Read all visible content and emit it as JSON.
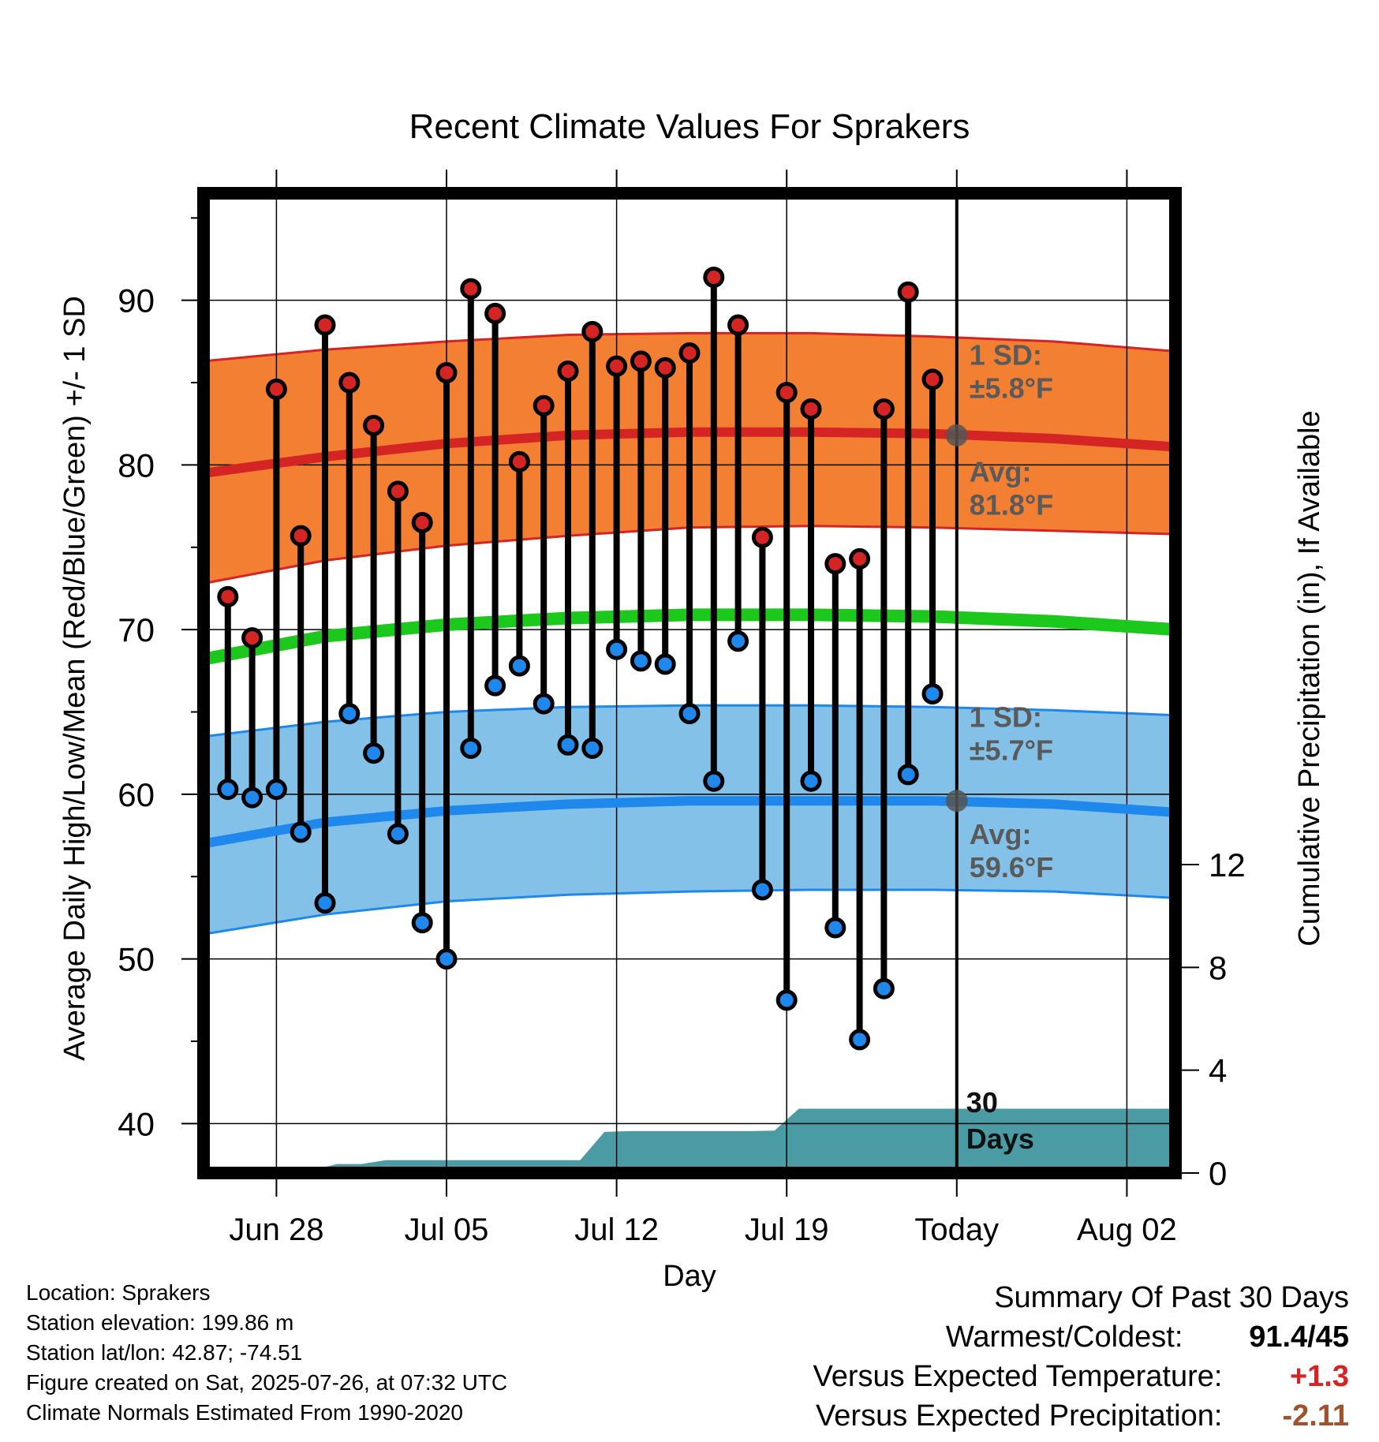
{
  "chart_data": {
    "type": "line",
    "title": "Recent Climate Values For Sprakers",
    "xlabel": "Day",
    "ylabel": "Average Daily High/Low/Mean (Red/Blue/Green) +/- 1 SD",
    "y2label": "Cumulative Precipitation (in), If Available",
    "ylim": [
      37,
      96.5
    ],
    "y2lim": [
      0,
      12
    ],
    "yticks": [
      40,
      50,
      60,
      70,
      80,
      90
    ],
    "y2ticks": [
      0,
      4,
      8,
      12
    ],
    "x_axis": {
      "start": "Jun 25",
      "end": "Aug 05",
      "ticks": [
        {
          "day": 3,
          "label": "Jun 28"
        },
        {
          "day": 10,
          "label": "Jul 05"
        },
        {
          "day": 17,
          "label": "Jul 12"
        },
        {
          "day": 24,
          "label": "Jul 19"
        },
        {
          "day": 31,
          "label": "Today"
        },
        {
          "day": 38,
          "label": "Aug 02"
        }
      ]
    },
    "today_day": 31,
    "days": [
      1,
      2,
      3,
      4,
      5,
      6,
      7,
      8,
      9,
      10,
      11,
      12,
      13,
      14,
      15,
      16,
      17,
      18,
      19,
      20,
      21,
      22,
      23,
      24,
      25,
      26,
      27,
      28,
      29,
      30
    ],
    "highs": [
      72.0,
      69.5,
      84.6,
      75.7,
      88.5,
      85.0,
      82.4,
      78.4,
      76.5,
      85.6,
      90.7,
      89.2,
      80.2,
      83.6,
      85.7,
      88.1,
      86.0,
      86.3,
      85.9,
      86.8,
      91.4,
      88.5,
      75.6,
      84.4,
      83.4,
      74.0,
      74.3,
      83.4,
      90.5,
      85.2
    ],
    "lows": [
      60.3,
      59.8,
      60.3,
      57.7,
      53.4,
      64.9,
      62.5,
      57.6,
      52.2,
      50.0,
      62.8,
      66.6,
      67.8,
      65.5,
      63.0,
      62.8,
      68.8,
      68.1,
      67.9,
      64.9,
      60.8,
      69.3,
      54.2,
      47.5,
      60.8,
      51.9,
      45.1,
      48.2,
      61.2,
      66.1
    ],
    "series": [
      {
        "name": "Avg High",
        "x": [
          0,
          5,
          10,
          15,
          20,
          25,
          30,
          35,
          40
        ],
        "values": [
          79.5,
          80.5,
          81.3,
          81.8,
          82.0,
          82.0,
          81.9,
          81.6,
          81.1
        ]
      },
      {
        "name": "Avg High +1 SD",
        "x": [
          0,
          5,
          10,
          15,
          20,
          25,
          30,
          35,
          40
        ],
        "values": [
          86.3,
          87.0,
          87.5,
          87.9,
          88.0,
          88.0,
          87.8,
          87.5,
          86.9
        ]
      },
      {
        "name": "Avg High -1 SD",
        "x": [
          0,
          5,
          10,
          15,
          20,
          25,
          30,
          35,
          40
        ],
        "values": [
          72.8,
          74.2,
          75.1,
          75.7,
          76.2,
          76.3,
          76.2,
          76.0,
          75.8
        ]
      },
      {
        "name": "Avg Mean",
        "x": [
          0,
          5,
          10,
          15,
          20,
          25,
          30,
          35,
          40
        ],
        "values": [
          68.2,
          69.6,
          70.3,
          70.7,
          70.9,
          70.9,
          70.8,
          70.5,
          70.0
        ]
      },
      {
        "name": "Avg Low",
        "x": [
          0,
          5,
          10,
          15,
          20,
          25,
          30,
          35,
          40
        ],
        "values": [
          57.0,
          58.3,
          59.0,
          59.4,
          59.6,
          59.6,
          59.6,
          59.4,
          58.9
        ]
      },
      {
        "name": "Avg Low +1 SD",
        "x": [
          0,
          5,
          10,
          15,
          20,
          25,
          30,
          35,
          40
        ],
        "values": [
          63.5,
          64.4,
          65.0,
          65.3,
          65.4,
          65.4,
          65.3,
          65.1,
          64.8
        ]
      },
      {
        "name": "Avg Low -1 SD",
        "x": [
          0,
          5,
          10,
          15,
          20,
          25,
          30,
          35,
          40
        ],
        "values": [
          51.5,
          52.7,
          53.5,
          53.9,
          54.1,
          54.2,
          54.2,
          54.1,
          53.7
        ]
      }
    ],
    "precip": {
      "x": [
        0.5,
        1.5,
        2.5,
        3.5,
        4.5,
        5.5,
        6.5,
        7.5,
        8.5,
        9.5,
        10.5,
        11.5,
        12.5,
        13.5,
        14.5,
        15.5,
        16.5,
        17.5,
        18.5,
        19.5,
        20.5,
        21.5,
        22.5,
        23.5,
        24.5,
        25.5,
        26.5,
        27.5,
        28.5,
        29.5,
        30.5,
        40
      ],
      "values": [
        0.0,
        0.05,
        0.06,
        0.06,
        0.12,
        0.35,
        0.35,
        0.5,
        0.5,
        0.5,
        0.5,
        0.5,
        0.5,
        0.5,
        0.5,
        0.5,
        1.6,
        1.63,
        1.63,
        1.63,
        1.63,
        1.63,
        1.63,
        1.65,
        2.5,
        2.5,
        2.5,
        2.5,
        2.5,
        2.5,
        2.5,
        2.5
      ]
    },
    "annotations": [
      {
        "text_line1": "1 SD:",
        "text_line2": "±5.8°F",
        "y": 85.8
      },
      {
        "text_line1": "Avg:",
        "text_line2": "81.8°F",
        "y": 78.7
      },
      {
        "text_line1": "1 SD:",
        "text_line2": "±5.7°F",
        "y": 63.8
      },
      {
        "text_line1": "Avg:",
        "text_line2": "59.6°F",
        "y": 56.7
      }
    ],
    "marker_points": [
      {
        "day": 31,
        "value": 81.8
      },
      {
        "day": 31,
        "value": 59.6
      }
    ],
    "period_label": {
      "line1": "30",
      "line2": "Days"
    },
    "colors": {
      "high_band": "#f27f32",
      "high_line": "#d42424",
      "high_edge": "#d42424",
      "mean_line": "#1dc81d",
      "low_band": "#84c1e8",
      "low_line": "#1e88ec",
      "precip_fill": "#4a9ba3",
      "high_marker": "#d42424",
      "low_marker": "#1e88ec",
      "annotation": "#5a5a5a"
    },
    "grid": true
  },
  "info": {
    "location": "Location: Sprakers",
    "elevation": "Station elevation: 199.86 m",
    "latlon": "Station lat/lon: 42.87; -74.51",
    "created": "Figure created on Sat, 2025-07-26, at 07:32 UTC",
    "normals": "Climate Normals Estimated From 1990-2020"
  },
  "summary": {
    "title": "Summary Of Past 30 Days",
    "warmest_label": "Warmest/Coldest:",
    "warmest_value": "91.4/45",
    "temp_label": "Versus Expected Temperature:",
    "temp_value": "+1.3",
    "temp_color": "#d42424",
    "precip_label": "Versus Expected Precipitation:",
    "precip_value": "-2.11",
    "precip_color": "#a0522d"
  }
}
